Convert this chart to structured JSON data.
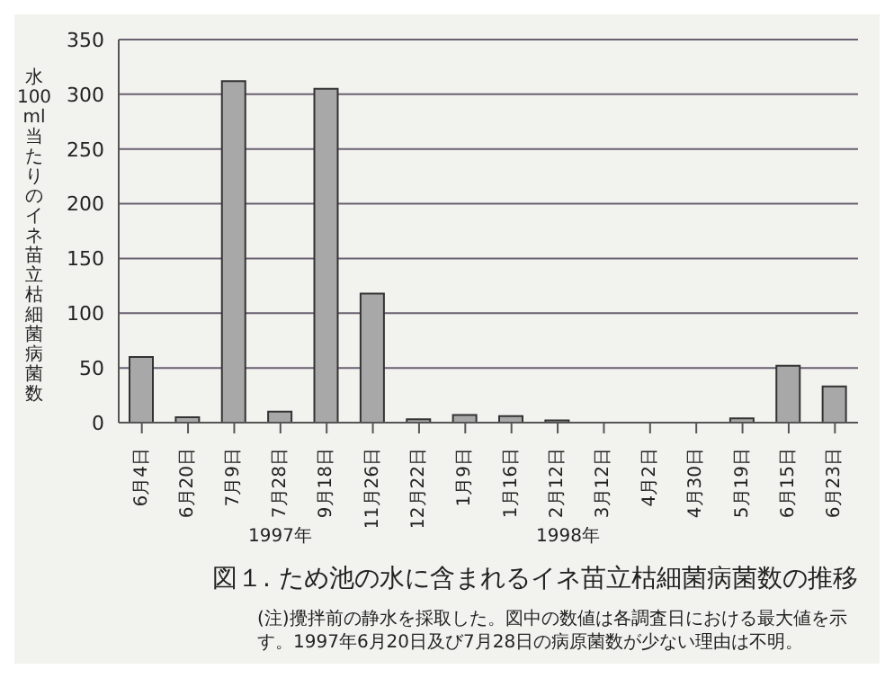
{
  "chart_data": {
    "type": "bar",
    "title": "図１. ため池の水に含まれるイネ苗立枯細菌病菌数の推移",
    "ylabel": "水100ml当たりのイネ苗立枯細菌病菌数",
    "categories": [
      "6月4日",
      "6月20日",
      "7月9日",
      "7月28日",
      "9月18日",
      "11月26日",
      "12月22日",
      "1月9日",
      "1月16日",
      "2月12日",
      "3月12日",
      "4月2日",
      "4月30日",
      "5月19日",
      "6月15日",
      "6月23日"
    ],
    "values": [
      60,
      5,
      312,
      10,
      305,
      118,
      3,
      7,
      6,
      2,
      0,
      0,
      0,
      4,
      52,
      33
    ],
    "color": "#a8a8a8",
    "ylim": [
      0,
      350
    ],
    "yticks": [
      0,
      50,
      100,
      150,
      200,
      250,
      300,
      350
    ],
    "grid": "y",
    "annotations": [
      "1997年",
      "1998年",
      "(注)攪拌前の静水を採取した。図中の数値は各調査日における最大値を示す。1997年6月20日及び7月28日の病原菌数が少ない理由は不明。"
    ]
  }
}
